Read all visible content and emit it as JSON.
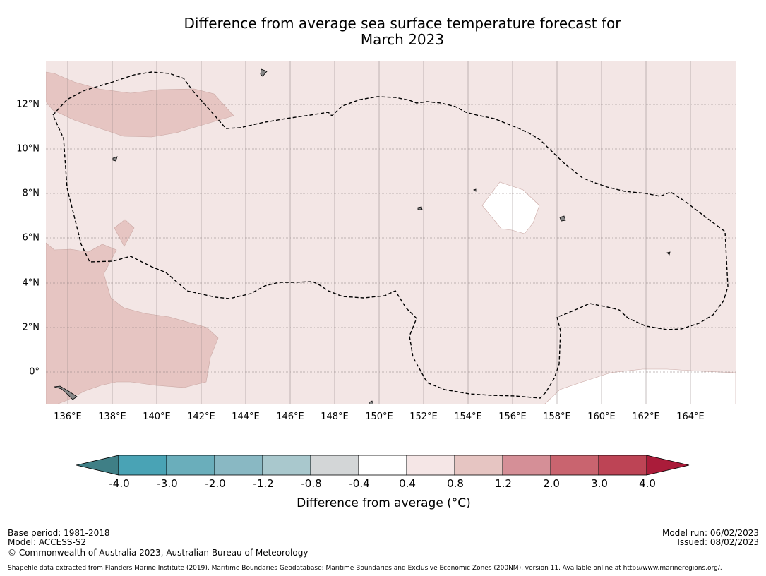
{
  "title": {
    "line1": "Difference from average sea surface temperature forecast for",
    "line2": "March 2023"
  },
  "map": {
    "longitude_labels": [
      "136°E",
      "138°E",
      "140°E",
      "142°E",
      "144°E",
      "146°E",
      "148°E",
      "150°E",
      "152°E",
      "154°E",
      "156°E",
      "158°E",
      "160°E",
      "162°E",
      "164°E"
    ],
    "latitude_labels": [
      "12°N",
      "10°N",
      "8°N",
      "6°N",
      "4°N",
      "2°N",
      "0°"
    ],
    "colors": {
      "background_anomaly": "#f3e6e5",
      "warm_anomaly": "#e6c5c2",
      "neutral": "#ffffff",
      "land": "#888888",
      "eez_boundary": "#000000"
    }
  },
  "colorbar": {
    "tick_labels": [
      "-4.0",
      "-3.0",
      "-2.0",
      "-1.2",
      "-0.8",
      "-0.4",
      "0.4",
      "0.8",
      "1.2",
      "2.0",
      "3.0",
      "4.0"
    ],
    "colors": [
      "#3f7f86",
      "#49a3b5",
      "#6aaebb",
      "#89b8c3",
      "#a9c8cd",
      "#d3d6d7",
      "#ffffff",
      "#f5e6e6",
      "#e6c5c2",
      "#d58f97",
      "#c9646f",
      "#bd4455",
      "#aa1c3a"
    ],
    "title": "Difference from average (°C)"
  },
  "footer": {
    "base_period": "Base period: 1981-2018",
    "model": "Model: ACCESS-S2",
    "copyright": "© Commonwealth of Australia 2023, Australian Bureau of Meteorology",
    "model_run": "Model run: 06/02/2023",
    "issued": "Issued: 08/02/2023",
    "shapefile_note": "Shapefile data extracted from Flanders Marine Institute (2019), Maritime Boundaries Geodatabase: Maritime Boundaries and Exclusive Economic Zones (200NM), version 11. Available online at http://www.marineregions.org/."
  }
}
